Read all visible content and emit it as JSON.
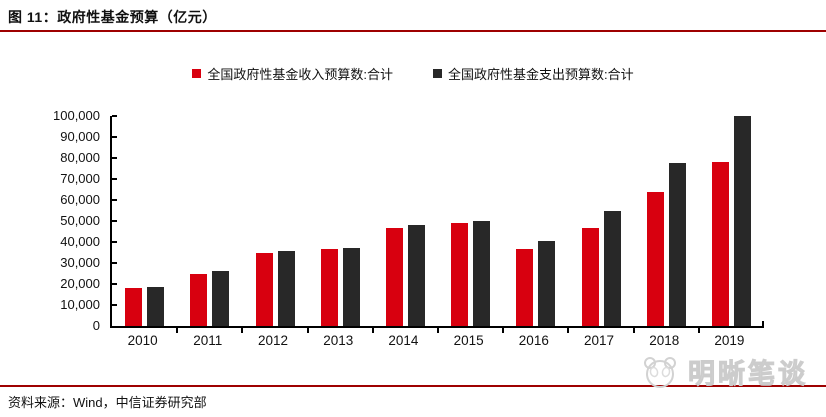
{
  "header": {
    "title": "图 11：政府性基金预算（亿元）"
  },
  "legend": [
    {
      "label": "全国政府性基金收入预算数:合计",
      "color": "#d8000f"
    },
    {
      "label": "全国政府性基金支出预算数:合计",
      "color": "#282828"
    }
  ],
  "chart_data": {
    "type": "bar",
    "title": "政府性基金预算（亿元）",
    "categories": [
      "2010",
      "2011",
      "2012",
      "2013",
      "2014",
      "2015",
      "2016",
      "2017",
      "2018",
      "2019"
    ],
    "series": [
      {
        "name": "全国政府性基金收入预算数:合计",
        "color": "#d8000f",
        "values": [
          18000,
          24900,
          34800,
          36600,
          46500,
          48900,
          36500,
          46800,
          63700,
          78200
        ]
      },
      {
        "name": "全国政府性基金支出预算数:合计",
        "color": "#282828",
        "values": [
          18700,
          26000,
          35500,
          37300,
          48000,
          50100,
          40500,
          54800,
          77800,
          99800
        ]
      }
    ],
    "xlabel": "",
    "ylabel": "",
    "ylim": [
      0,
      100000
    ],
    "y_tick_step": 10000,
    "y_tick_labels": [
      "0",
      "10,000",
      "20,000",
      "30,000",
      "40,000",
      "50,000",
      "60,000",
      "70,000",
      "80,000",
      "90,000",
      "100,000"
    ],
    "grid": false,
    "legend_position": "top"
  },
  "footer": {
    "source": "资料来源：Wind，中信证券研究部"
  },
  "watermark": {
    "text": "明晰笔谈",
    "logo": "panda-face-icon"
  },
  "colors": {
    "revenue_bar": "#d8000f",
    "expenditure_bar": "#282828",
    "rule_red": "#9e0000",
    "axis_black": "#000000",
    "watermark_gray": "#cccccc"
  }
}
